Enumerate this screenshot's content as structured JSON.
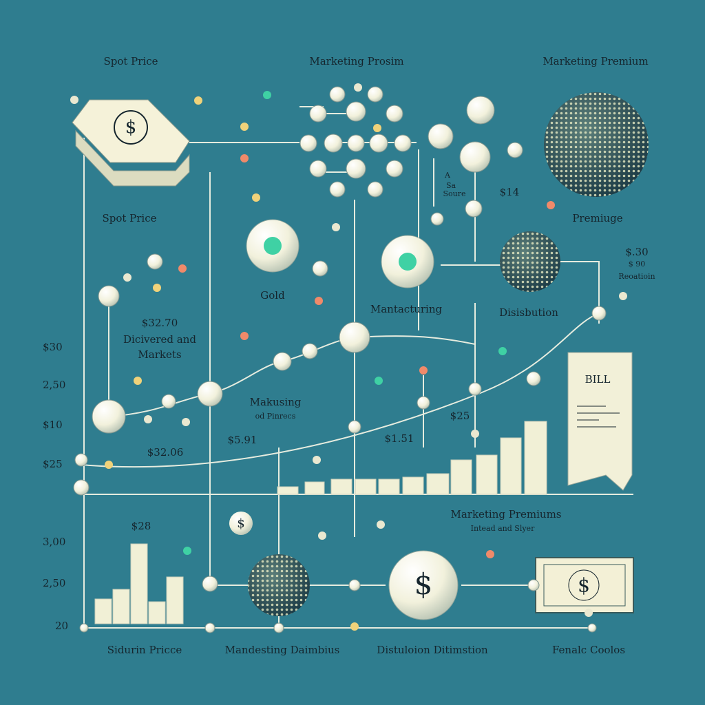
{
  "header": {
    "left": "Spot Price",
    "center": "Marketing Prosim",
    "right": "Marketing Premium"
  },
  "labels": {
    "spot_price": "Spot Price",
    "premiuge": "Premiuge",
    "gold": "Gold",
    "manufacturing": "Mantacturing",
    "distribution": "Disisbution",
    "delivered_price": "$32.70",
    "delivered": "Dicivered and",
    "markets": "Markets",
    "makusing": "Makusing",
    "pinrecs": "od Pinrecs",
    "premium_14": "$14",
    "a": "A",
    "sa": "Sa",
    "soure": "Soure",
    "right_price_1": "$.30",
    "right_price_2": "$ 90",
    "reoatioin": "Reoatioin",
    "price_a": "$32.06",
    "price_b": "$5.91",
    "price_c": "$1.51",
    "price_d": "$25",
    "price_e": "$28",
    "bill": "BILL",
    "marketing_premiums": "Marketing Premiums",
    "intead": "Intead and Slyer"
  },
  "upper_axis": [
    "$30",
    "2,50",
    "$10",
    "$25"
  ],
  "lower_axis": [
    "3,00",
    "2,50",
    "20"
  ],
  "footer": [
    "Sidurin Pricce",
    "Mandesting Daimbius",
    "Distuloion Ditimstion",
    "Fenalc Coolos"
  ],
  "dollar_symbol": "$"
}
